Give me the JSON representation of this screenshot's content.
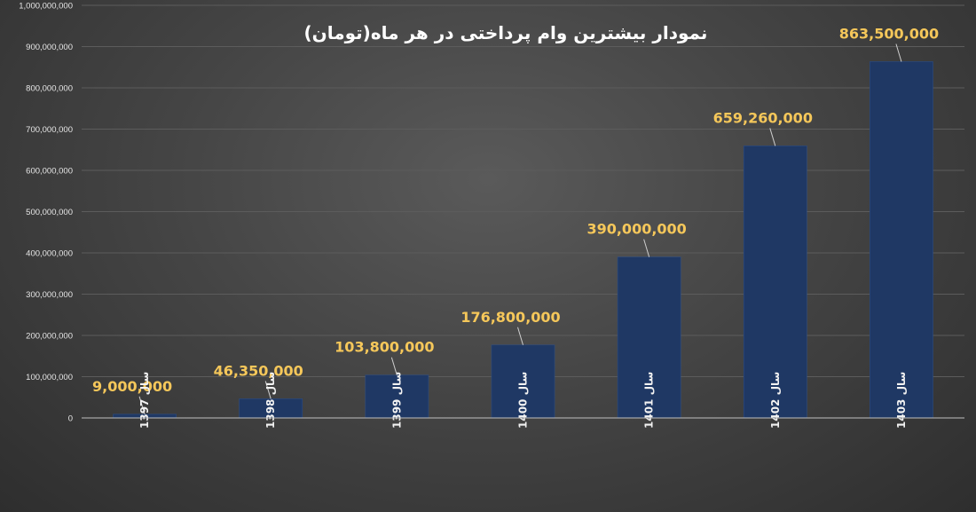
{
  "chart_data": {
    "type": "bar",
    "title": "نمودار بیشترین وام پرداختی در هر ماه(تومان)",
    "xlabel": "",
    "ylabel": "",
    "categories": [
      "سال 1397",
      "سال 1398",
      "سال 1399",
      "سال 1400",
      "سال 1401",
      "سال 1402",
      "سال 1403"
    ],
    "values": [
      9000000,
      46350000,
      103800000,
      176800000,
      390000000,
      659260000,
      863500000
    ],
    "value_labels": [
      "9,000,000",
      "46,350,000",
      "103,800,000",
      "176,800,000",
      "390,000,000",
      "659,260,000",
      "863,500,000"
    ],
    "ylim": [
      0,
      1000000000
    ],
    "yticks": [
      0,
      100000000,
      200000000,
      300000000,
      400000000,
      500000000,
      600000000,
      700000000,
      800000000,
      900000000,
      1000000000
    ],
    "ytick_labels": [
      "0",
      "100,000,000",
      "200,000,000",
      "300,000,000",
      "400,000,000",
      "500,000,000",
      "600,000,000",
      "700,000,000",
      "800,000,000",
      "900,000,000",
      "1,000,000,000"
    ],
    "grid": true,
    "legend": "none",
    "colors": {
      "bar": "#1f3864",
      "bar_edge": "#2b4c85",
      "value_label": "#f5c75a",
      "grid": "#5c5c5c",
      "axis": "#bfbfbf",
      "text": "#e6e6e6"
    }
  }
}
